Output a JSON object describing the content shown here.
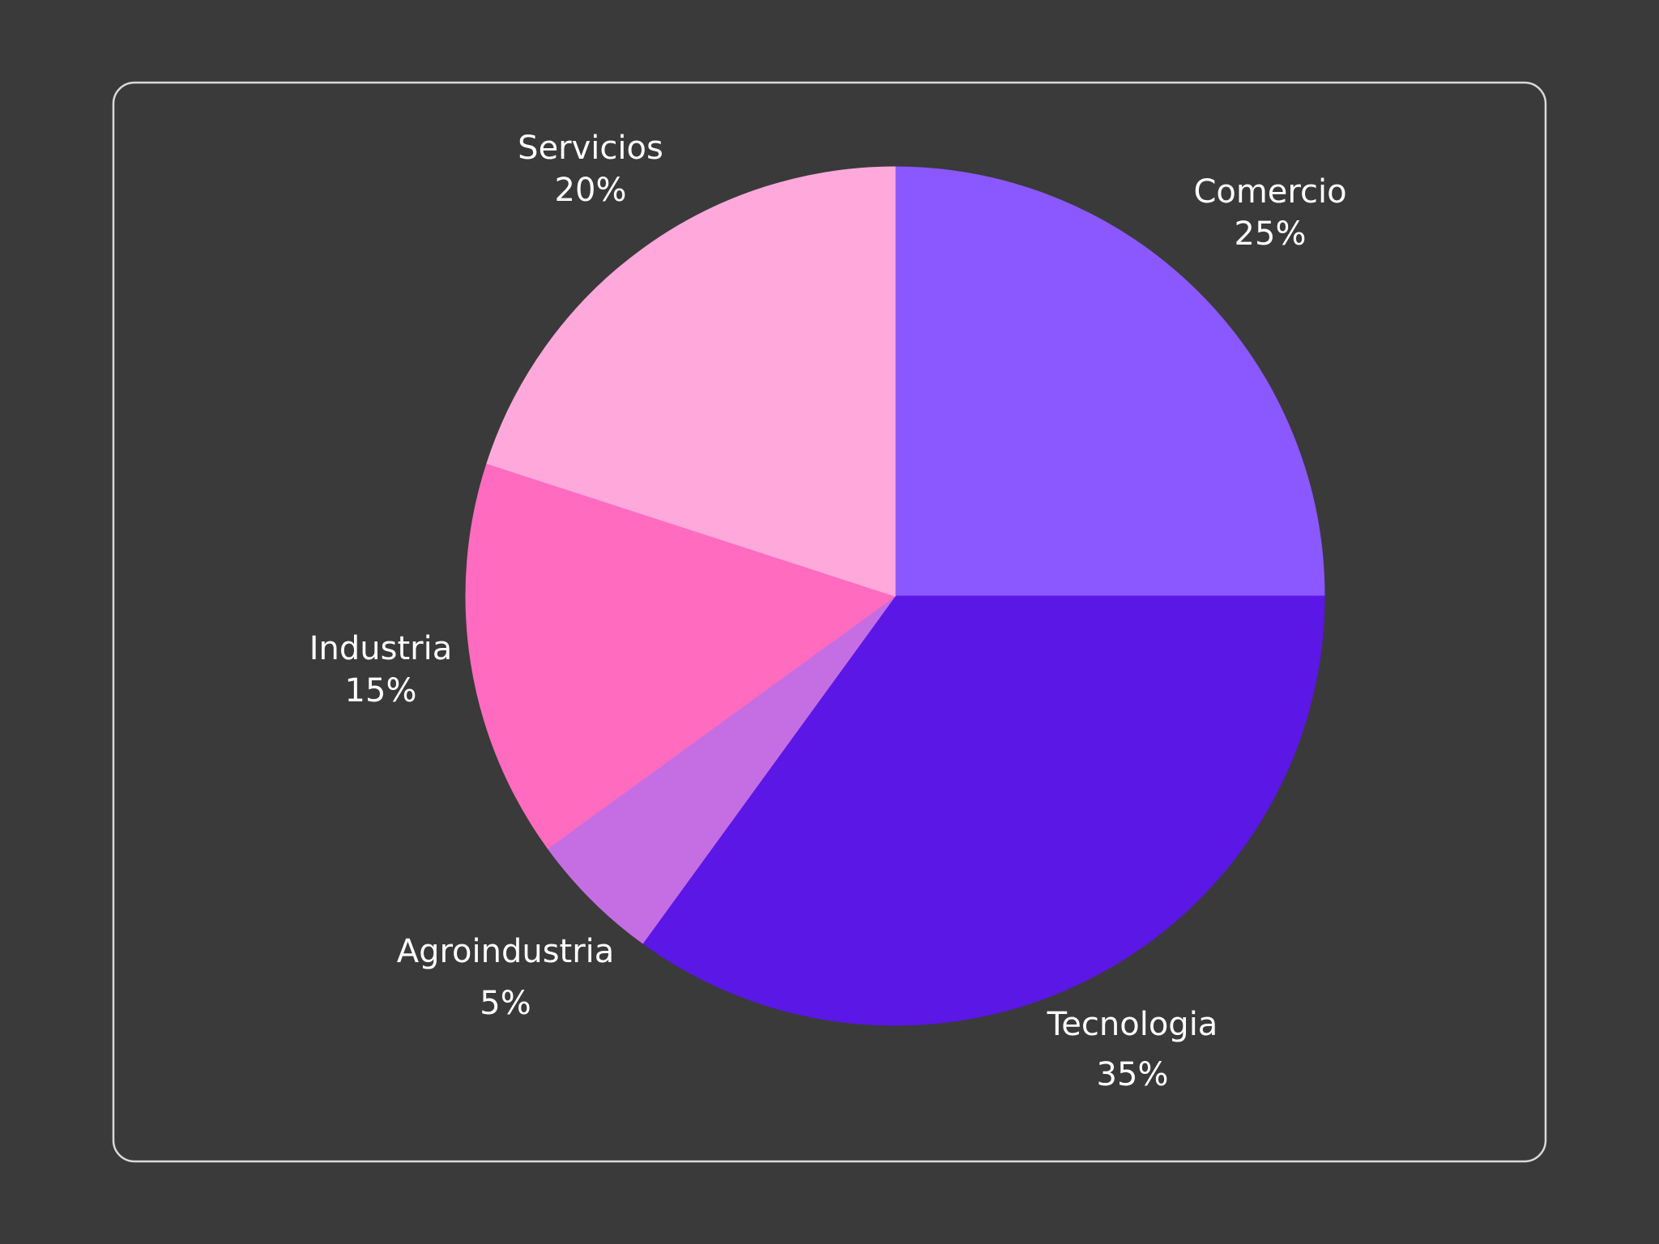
{
  "chart_data": {
    "type": "pie",
    "title": "",
    "start_angle_deg": 0,
    "direction": "clockwise",
    "slices": [
      {
        "label": "Comercio",
        "value": 25,
        "value_label": "25%",
        "color": "#8b57ff"
      },
      {
        "label": "Tecnologia",
        "value": 35,
        "value_label": "35%",
        "color": "#5b17e6"
      },
      {
        "label": "Agroindustria",
        "value": 5,
        "value_label": "5%",
        "color": "#c56ee3"
      },
      {
        "label": "Industria",
        "value": 15,
        "value_label": "15%",
        "color": "#ff6bbf"
      },
      {
        "label": "Servicios",
        "value": 20,
        "value_label": "20%",
        "color": "#ffa8dc"
      }
    ],
    "legend": "none"
  },
  "colors": {
    "background": "#3a3a3a",
    "frame_border": "#d9d9d9"
  }
}
